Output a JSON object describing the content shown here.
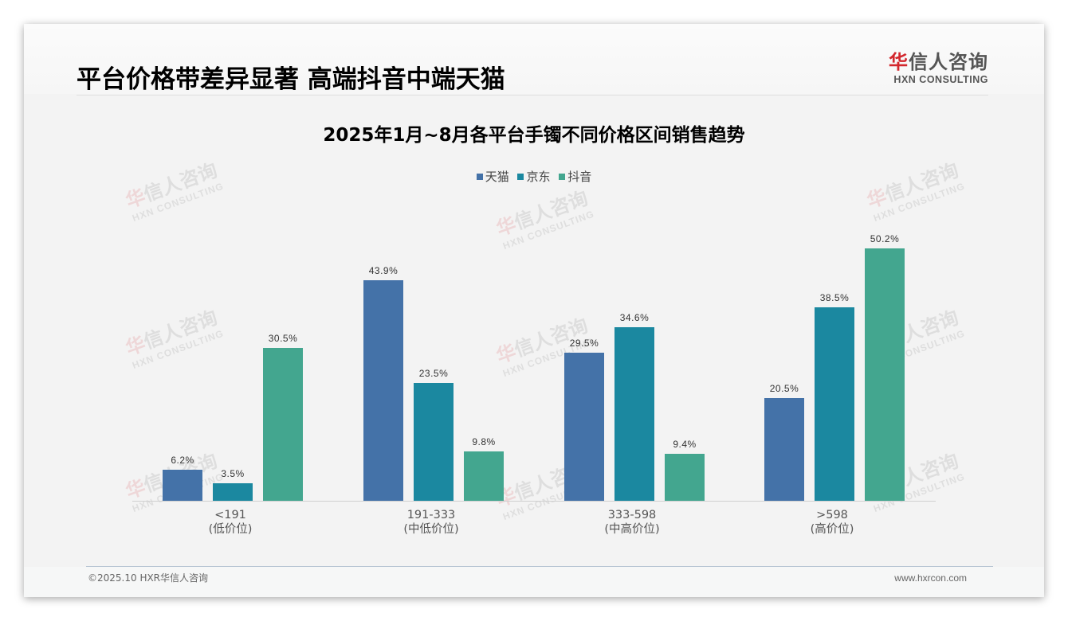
{
  "header": {
    "title": "平台价格带差异显著 高端抖音中端天猫",
    "logo_cn_first": "华",
    "logo_cn_rest": "信人咨询",
    "logo_en": "HXN CONSULTING"
  },
  "watermark": {
    "cn_first": "华",
    "cn_rest": "信人咨询",
    "en": "HXN CONSULTING"
  },
  "footer": {
    "copyright": "©2025.10 HXR华信人咨询",
    "website": "www.hxrcon.com"
  },
  "colors": {
    "tmall": "#4472a8",
    "jd": "#1b88a0",
    "douyin": "#43a68f",
    "brand_red": "#d3272d"
  },
  "chart_data": {
    "type": "bar",
    "title": "2025年1月~8月各平台手镯不同价格区间销售趋势",
    "xlabel": "",
    "ylabel": "",
    "categories": [
      "<191\n(低价位)",
      "191-333\n(中低价位)",
      "333-598\n(中高价位)",
      ">598\n(高价位)"
    ],
    "category_ranges": [
      "<191",
      "191-333",
      "333-598",
      ">598"
    ],
    "category_tiers": [
      "(低价位)",
      "(中低价位)",
      "(中高价位)",
      "(高价位)"
    ],
    "series": [
      {
        "name": "天猫",
        "color": "#4472a8",
        "values": [
          6.2,
          43.9,
          29.5,
          20.5
        ],
        "labels": [
          "6.2%",
          "43.9%",
          "29.5%",
          "20.5%"
        ]
      },
      {
        "name": "京东",
        "color": "#1b88a0",
        "values": [
          3.5,
          23.5,
          34.6,
          38.5
        ],
        "labels": [
          "3.5%",
          "23.5%",
          "34.6%",
          "38.5%"
        ]
      },
      {
        "name": "抖音",
        "color": "#43a68f",
        "values": [
          30.5,
          9.8,
          9.4,
          50.2
        ],
        "labels": [
          "30.5%",
          "9.8%",
          "9.4%",
          "50.2%"
        ]
      }
    ],
    "unit": "%",
    "ylim": [
      0,
      55
    ],
    "grid": false,
    "legend_position": "top",
    "data_labels": true
  }
}
